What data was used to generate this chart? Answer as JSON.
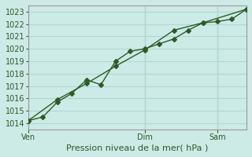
{
  "title": "",
  "xlabel": "Pression niveau de la mer( hPa )",
  "ylabel": "",
  "background_color": "#cceae6",
  "plot_bg_color": "#cceae6",
  "grid_color": "#b0d8d0",
  "line_color": "#2d5a27",
  "ylim": [
    1013.5,
    1023.5
  ],
  "yticks": [
    1014,
    1015,
    1016,
    1017,
    1018,
    1019,
    1020,
    1021,
    1022,
    1023
  ],
  "xtick_labels": [
    "Ven",
    "Dim",
    "Sam"
  ],
  "xtick_positions": [
    0.0,
    0.533,
    0.867
  ],
  "vline_positions": [
    0.0,
    0.533,
    0.867
  ],
  "line1_x": [
    0.0,
    0.067,
    0.133,
    0.2,
    0.267,
    0.333,
    0.4,
    0.467,
    0.533,
    0.6,
    0.667,
    0.733,
    0.8,
    0.867,
    0.933,
    1.0
  ],
  "line1_y": [
    1014.2,
    1014.5,
    1015.7,
    1016.4,
    1017.5,
    1017.1,
    1019.0,
    1019.8,
    1020.0,
    1020.4,
    1020.8,
    1021.5,
    1022.1,
    1022.2,
    1022.4,
    1023.2
  ],
  "line2_x": [
    0.0,
    0.133,
    0.267,
    0.4,
    0.533,
    0.667,
    0.8,
    1.0
  ],
  "line2_y": [
    1014.2,
    1015.9,
    1017.2,
    1018.6,
    1019.9,
    1021.5,
    1022.1,
    1023.2
  ],
  "marker": "D",
  "marker_size": 3,
  "line_width": 1.0,
  "xlabel_fontsize": 8,
  "tick_fontsize": 7
}
